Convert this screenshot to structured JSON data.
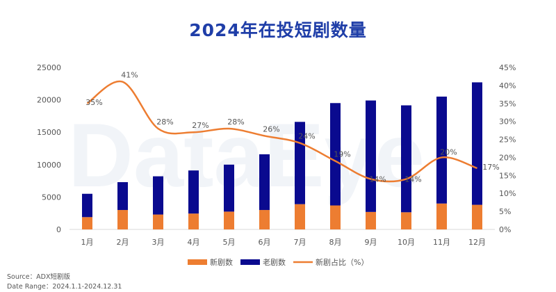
{
  "title": "2024年在投短剧数量",
  "watermark": "DataEye",
  "footer": {
    "source": "Source：ADX短剧版",
    "date_range": "Date Range：2024.1.1-2024.12.31"
  },
  "colors": {
    "new": "#ed7d31",
    "old": "#0a0a8f",
    "ratio": "#ed7d31"
  },
  "chart_data": {
    "type": "bar",
    "stacked": true,
    "categories": [
      "1月",
      "2月",
      "3月",
      "4月",
      "5月",
      "6月",
      "7月",
      "8月",
      "9月",
      "10月",
      "11月",
      "12月"
    ],
    "series": [
      {
        "name": "新剧数",
        "type": "bar",
        "axis": "left",
        "values": [
          1900,
          3000,
          2300,
          2450,
          2750,
          3000,
          3900,
          3700,
          2700,
          2650,
          4000,
          3800
        ]
      },
      {
        "name": "老剧数",
        "type": "bar",
        "axis": "left",
        "values": [
          3600,
          4300,
          5900,
          6650,
          7250,
          8600,
          12700,
          15800,
          17200,
          16500,
          16500,
          18900
        ]
      },
      {
        "name": "新剧占比（%）",
        "type": "line",
        "axis": "right",
        "values": [
          35,
          41,
          28,
          27,
          28,
          26,
          24,
          19,
          14,
          14,
          20,
          17
        ],
        "labels": [
          "35%",
          "41%",
          "28%",
          "27%",
          "28%",
          "26%",
          "24%",
          "19%",
          "14%",
          "14%",
          "20%",
          "17%"
        ]
      }
    ],
    "y_left": {
      "min": 0,
      "max": 25000,
      "ticks": [
        "0",
        "5000",
        "10000",
        "15000",
        "20000",
        "25000"
      ]
    },
    "y_right": {
      "min": 0,
      "max": 45,
      "ticks": [
        "0%",
        "5%",
        "10%",
        "15%",
        "20%",
        "25%",
        "30%",
        "35%",
        "40%",
        "45%"
      ]
    },
    "grid": false,
    "legend_position": "bottom"
  }
}
